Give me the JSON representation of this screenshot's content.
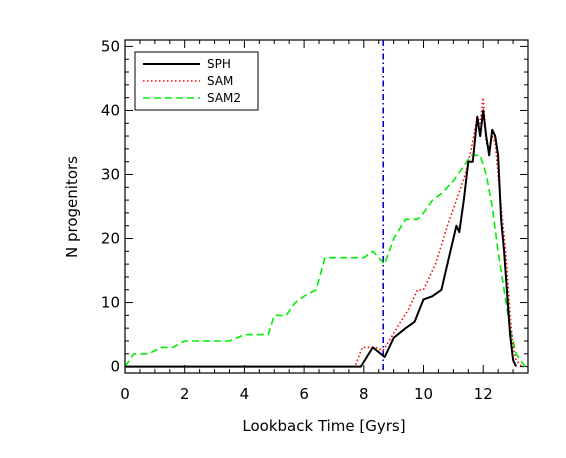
{
  "chart_data": {
    "type": "line",
    "xlabel": "Lookback Time [Gyrs]",
    "ylabel": "N progenitors",
    "xlim": [
      0,
      13.5
    ],
    "ylim": [
      -1,
      51
    ],
    "x_ticks": [
      0,
      2,
      4,
      6,
      8,
      10,
      12
    ],
    "x_tick_labels": [
      "0",
      "2",
      "4",
      "6",
      "8",
      "10",
      "12"
    ],
    "y_ticks": [
      0,
      10,
      20,
      30,
      40,
      50
    ],
    "y_tick_labels": [
      "0",
      "10",
      "20",
      "30",
      "40",
      "50"
    ],
    "grid": false,
    "legend_position": "top-left",
    "vertical_line": {
      "x": 8.65,
      "color": "#0000cc",
      "style": "dash-dot"
    },
    "series": [
      {
        "name": "SPH",
        "color": "#000000",
        "style": "solid",
        "x": [
          0,
          7.9,
          8.3,
          8.7,
          9.0,
          9.4,
          9.7,
          10.0,
          10.3,
          10.6,
          10.8,
          11.0,
          11.1,
          11.2,
          11.35,
          11.5,
          11.65,
          11.8,
          11.9,
          12.0,
          12.1,
          12.2,
          12.3,
          12.4,
          12.5,
          12.6,
          12.7,
          12.9,
          13.0,
          13.1
        ],
        "y": [
          0,
          0,
          3,
          1.5,
          4.5,
          6,
          7,
          10.5,
          11,
          12,
          16,
          20,
          22,
          21,
          26,
          32,
          32,
          39,
          36,
          40,
          36,
          33,
          37,
          36,
          33,
          23,
          18,
          5,
          1,
          0
        ]
      },
      {
        "name": "SAM",
        "color": "#ff0000",
        "style": "dotted",
        "x": [
          0,
          7.7,
          7.95,
          8.4,
          8.65,
          9.1,
          9.5,
          9.8,
          10.0,
          10.4,
          10.8,
          11.1,
          11.4,
          11.6,
          11.8,
          11.9,
          12.0,
          12.1,
          12.2,
          12.3,
          12.4,
          12.6,
          12.75,
          12.9,
          13.0,
          13.1,
          13.3
        ],
        "y": [
          0,
          0,
          3,
          3,
          2.5,
          6,
          9,
          12,
          12,
          16,
          22,
          26,
          30,
          34,
          39,
          38,
          42,
          35,
          34,
          36,
          35,
          25,
          18,
          8,
          3,
          1,
          0
        ]
      },
      {
        "name": "SAM2",
        "color": "#00ee00",
        "style": "dashed",
        "x": [
          0,
          0.3,
          0.8,
          1.2,
          1.6,
          2.0,
          2.4,
          3.0,
          3.5,
          4.0,
          4.4,
          4.8,
          5.0,
          5.4,
          5.7,
          6.0,
          6.4,
          6.7,
          7.0,
          7.5,
          8.0,
          8.3,
          8.7,
          9.0,
          9.4,
          9.8,
          10.0,
          10.3,
          10.6,
          11.0,
          11.3,
          11.6,
          11.9,
          12.1,
          12.3,
          12.5,
          12.7,
          12.9,
          13.1,
          13.4
        ],
        "y": [
          0,
          2,
          2,
          3,
          3,
          4,
          4,
          4,
          4,
          5,
          5,
          5,
          8,
          8,
          10,
          11,
          12,
          17,
          17,
          17,
          17,
          18,
          16,
          20,
          23,
          23,
          24,
          26,
          27,
          29,
          31,
          33,
          33,
          30,
          25,
          18,
          12,
          6,
          2,
          0
        ]
      }
    ]
  }
}
